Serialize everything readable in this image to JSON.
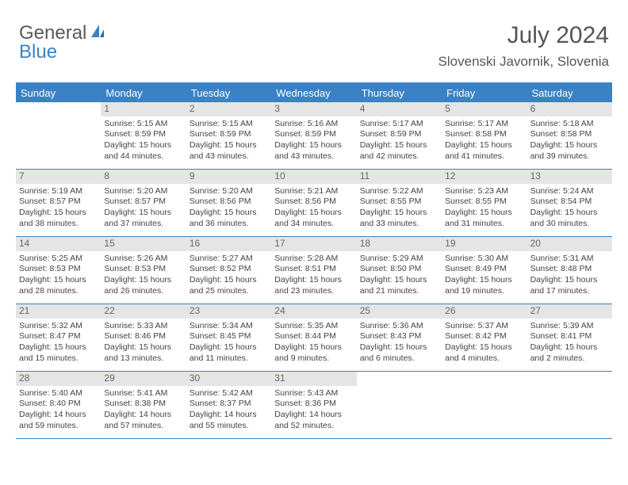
{
  "logo": {
    "text1": "General",
    "text2": "Blue"
  },
  "title": "July 2024",
  "location": "Slovenski Javornik, Slovenia",
  "colors": {
    "header_bg": "#3a82c4",
    "daynum_bg": "#e5e5e5",
    "border": "#3a82c4",
    "text": "#444444"
  },
  "days_of_week": [
    "Sunday",
    "Monday",
    "Tuesday",
    "Wednesday",
    "Thursday",
    "Friday",
    "Saturday"
  ],
  "weeks": [
    [
      {
        "num": "",
        "lines": []
      },
      {
        "num": "1",
        "lines": [
          "Sunrise: 5:15 AM",
          "Sunset: 8:59 PM",
          "Daylight: 15 hours and 44 minutes."
        ]
      },
      {
        "num": "2",
        "lines": [
          "Sunrise: 5:15 AM",
          "Sunset: 8:59 PM",
          "Daylight: 15 hours and 43 minutes."
        ]
      },
      {
        "num": "3",
        "lines": [
          "Sunrise: 5:16 AM",
          "Sunset: 8:59 PM",
          "Daylight: 15 hours and 43 minutes."
        ]
      },
      {
        "num": "4",
        "lines": [
          "Sunrise: 5:17 AM",
          "Sunset: 8:59 PM",
          "Daylight: 15 hours and 42 minutes."
        ]
      },
      {
        "num": "5",
        "lines": [
          "Sunrise: 5:17 AM",
          "Sunset: 8:58 PM",
          "Daylight: 15 hours and 41 minutes."
        ]
      },
      {
        "num": "6",
        "lines": [
          "Sunrise: 5:18 AM",
          "Sunset: 8:58 PM",
          "Daylight: 15 hours and 39 minutes."
        ]
      }
    ],
    [
      {
        "num": "7",
        "lines": [
          "Sunrise: 5:19 AM",
          "Sunset: 8:57 PM",
          "Daylight: 15 hours and 38 minutes."
        ]
      },
      {
        "num": "8",
        "lines": [
          "Sunrise: 5:20 AM",
          "Sunset: 8:57 PM",
          "Daylight: 15 hours and 37 minutes."
        ]
      },
      {
        "num": "9",
        "lines": [
          "Sunrise: 5:20 AM",
          "Sunset: 8:56 PM",
          "Daylight: 15 hours and 36 minutes."
        ]
      },
      {
        "num": "10",
        "lines": [
          "Sunrise: 5:21 AM",
          "Sunset: 8:56 PM",
          "Daylight: 15 hours and 34 minutes."
        ]
      },
      {
        "num": "11",
        "lines": [
          "Sunrise: 5:22 AM",
          "Sunset: 8:55 PM",
          "Daylight: 15 hours and 33 minutes."
        ]
      },
      {
        "num": "12",
        "lines": [
          "Sunrise: 5:23 AM",
          "Sunset: 8:55 PM",
          "Daylight: 15 hours and 31 minutes."
        ]
      },
      {
        "num": "13",
        "lines": [
          "Sunrise: 5:24 AM",
          "Sunset: 8:54 PM",
          "Daylight: 15 hours and 30 minutes."
        ]
      }
    ],
    [
      {
        "num": "14",
        "lines": [
          "Sunrise: 5:25 AM",
          "Sunset: 8:53 PM",
          "Daylight: 15 hours and 28 minutes."
        ]
      },
      {
        "num": "15",
        "lines": [
          "Sunrise: 5:26 AM",
          "Sunset: 8:53 PM",
          "Daylight: 15 hours and 26 minutes."
        ]
      },
      {
        "num": "16",
        "lines": [
          "Sunrise: 5:27 AM",
          "Sunset: 8:52 PM",
          "Daylight: 15 hours and 25 minutes."
        ]
      },
      {
        "num": "17",
        "lines": [
          "Sunrise: 5:28 AM",
          "Sunset: 8:51 PM",
          "Daylight: 15 hours and 23 minutes."
        ]
      },
      {
        "num": "18",
        "lines": [
          "Sunrise: 5:29 AM",
          "Sunset: 8:50 PM",
          "Daylight: 15 hours and 21 minutes."
        ]
      },
      {
        "num": "19",
        "lines": [
          "Sunrise: 5:30 AM",
          "Sunset: 8:49 PM",
          "Daylight: 15 hours and 19 minutes."
        ]
      },
      {
        "num": "20",
        "lines": [
          "Sunrise: 5:31 AM",
          "Sunset: 8:48 PM",
          "Daylight: 15 hours and 17 minutes."
        ]
      }
    ],
    [
      {
        "num": "21",
        "lines": [
          "Sunrise: 5:32 AM",
          "Sunset: 8:47 PM",
          "Daylight: 15 hours and 15 minutes."
        ]
      },
      {
        "num": "22",
        "lines": [
          "Sunrise: 5:33 AM",
          "Sunset: 8:46 PM",
          "Daylight: 15 hours and 13 minutes."
        ]
      },
      {
        "num": "23",
        "lines": [
          "Sunrise: 5:34 AM",
          "Sunset: 8:45 PM",
          "Daylight: 15 hours and 11 minutes."
        ]
      },
      {
        "num": "24",
        "lines": [
          "Sunrise: 5:35 AM",
          "Sunset: 8:44 PM",
          "Daylight: 15 hours and 9 minutes."
        ]
      },
      {
        "num": "25",
        "lines": [
          "Sunrise: 5:36 AM",
          "Sunset: 8:43 PM",
          "Daylight: 15 hours and 6 minutes."
        ]
      },
      {
        "num": "26",
        "lines": [
          "Sunrise: 5:37 AM",
          "Sunset: 8:42 PM",
          "Daylight: 15 hours and 4 minutes."
        ]
      },
      {
        "num": "27",
        "lines": [
          "Sunrise: 5:39 AM",
          "Sunset: 8:41 PM",
          "Daylight: 15 hours and 2 minutes."
        ]
      }
    ],
    [
      {
        "num": "28",
        "lines": [
          "Sunrise: 5:40 AM",
          "Sunset: 8:40 PM",
          "Daylight: 14 hours and 59 minutes."
        ]
      },
      {
        "num": "29",
        "lines": [
          "Sunrise: 5:41 AM",
          "Sunset: 8:38 PM",
          "Daylight: 14 hours and 57 minutes."
        ]
      },
      {
        "num": "30",
        "lines": [
          "Sunrise: 5:42 AM",
          "Sunset: 8:37 PM",
          "Daylight: 14 hours and 55 minutes."
        ]
      },
      {
        "num": "31",
        "lines": [
          "Sunrise: 5:43 AM",
          "Sunset: 8:36 PM",
          "Daylight: 14 hours and 52 minutes."
        ]
      },
      {
        "num": "",
        "lines": []
      },
      {
        "num": "",
        "lines": []
      },
      {
        "num": "",
        "lines": []
      }
    ]
  ]
}
